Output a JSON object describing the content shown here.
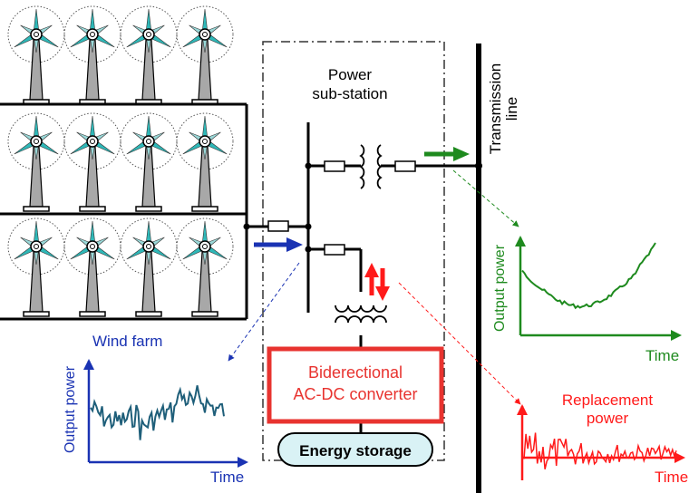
{
  "labels": {
    "wind_farm": "Wind farm",
    "substation_line1": "Power",
    "substation_line2": "sub-station",
    "transmission_line1": "Transmission",
    "transmission_line2": "line",
    "converter_line1": "Biderectional",
    "converter_line2": "AC-DC converter",
    "energy_storage": "Energy storage",
    "replacement_line1": "Replacement",
    "replacement_line2": "power"
  },
  "plots": {
    "wind": {
      "ylabel": "Output power",
      "xlabel": "Time",
      "color": "#1a33b3",
      "line_color": "#1f5f7a"
    },
    "output": {
      "ylabel": "Output power",
      "xlabel": "Time",
      "color": "#1e8a1e"
    },
    "replacement": {
      "xlabel": "Time",
      "color": "#ff1a1a"
    }
  },
  "colors": {
    "converter_border": "#e8332f",
    "storage_fill": "#d9f2f5",
    "blade": "#2fb8b8",
    "tower": "#a8a8a8",
    "substation_border": "#333333"
  },
  "icons": {
    "wind_turbine": "wind-turbine-icon",
    "transformer": "transformer-icon",
    "resistor": "resistor-icon",
    "flow_arrow": "arrow-icon"
  }
}
